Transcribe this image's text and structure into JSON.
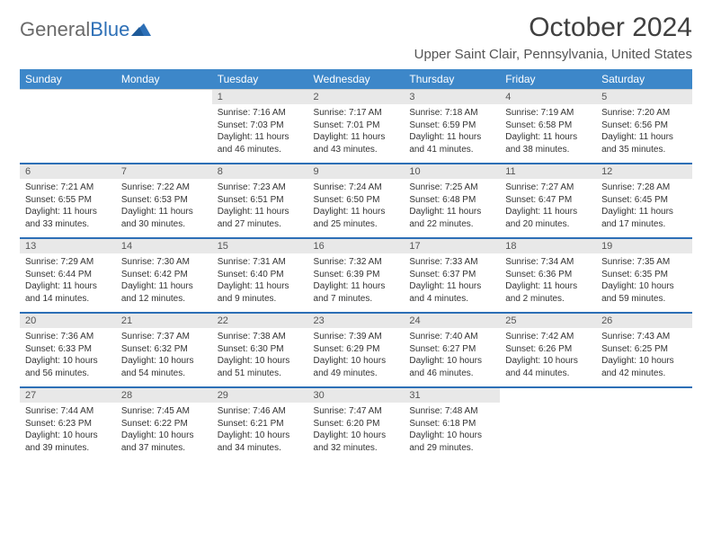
{
  "logo": {
    "text1": "General",
    "text2": "Blue"
  },
  "title": "October 2024",
  "location": "Upper Saint Clair, Pennsylvania, United States",
  "colors": {
    "header_bg": "#3d87c9",
    "header_text": "#ffffff",
    "daynum_bg": "#e8e8e8",
    "separator": "#2d6fb6",
    "logo_gray": "#6a6a6a",
    "logo_blue": "#2d6fb6"
  },
  "day_names": [
    "Sunday",
    "Monday",
    "Tuesday",
    "Wednesday",
    "Thursday",
    "Friday",
    "Saturday"
  ],
  "weeks": [
    {
      "nums": [
        "",
        "",
        "1",
        "2",
        "3",
        "4",
        "5"
      ],
      "cells": [
        null,
        null,
        {
          "sunrise": "Sunrise: 7:16 AM",
          "sunset": "Sunset: 7:03 PM",
          "daylight": "Daylight: 11 hours and 46 minutes."
        },
        {
          "sunrise": "Sunrise: 7:17 AM",
          "sunset": "Sunset: 7:01 PM",
          "daylight": "Daylight: 11 hours and 43 minutes."
        },
        {
          "sunrise": "Sunrise: 7:18 AM",
          "sunset": "Sunset: 6:59 PM",
          "daylight": "Daylight: 11 hours and 41 minutes."
        },
        {
          "sunrise": "Sunrise: 7:19 AM",
          "sunset": "Sunset: 6:58 PM",
          "daylight": "Daylight: 11 hours and 38 minutes."
        },
        {
          "sunrise": "Sunrise: 7:20 AM",
          "sunset": "Sunset: 6:56 PM",
          "daylight": "Daylight: 11 hours and 35 minutes."
        }
      ]
    },
    {
      "nums": [
        "6",
        "7",
        "8",
        "9",
        "10",
        "11",
        "12"
      ],
      "cells": [
        {
          "sunrise": "Sunrise: 7:21 AM",
          "sunset": "Sunset: 6:55 PM",
          "daylight": "Daylight: 11 hours and 33 minutes."
        },
        {
          "sunrise": "Sunrise: 7:22 AM",
          "sunset": "Sunset: 6:53 PM",
          "daylight": "Daylight: 11 hours and 30 minutes."
        },
        {
          "sunrise": "Sunrise: 7:23 AM",
          "sunset": "Sunset: 6:51 PM",
          "daylight": "Daylight: 11 hours and 27 minutes."
        },
        {
          "sunrise": "Sunrise: 7:24 AM",
          "sunset": "Sunset: 6:50 PM",
          "daylight": "Daylight: 11 hours and 25 minutes."
        },
        {
          "sunrise": "Sunrise: 7:25 AM",
          "sunset": "Sunset: 6:48 PM",
          "daylight": "Daylight: 11 hours and 22 minutes."
        },
        {
          "sunrise": "Sunrise: 7:27 AM",
          "sunset": "Sunset: 6:47 PM",
          "daylight": "Daylight: 11 hours and 20 minutes."
        },
        {
          "sunrise": "Sunrise: 7:28 AM",
          "sunset": "Sunset: 6:45 PM",
          "daylight": "Daylight: 11 hours and 17 minutes."
        }
      ]
    },
    {
      "nums": [
        "13",
        "14",
        "15",
        "16",
        "17",
        "18",
        "19"
      ],
      "cells": [
        {
          "sunrise": "Sunrise: 7:29 AM",
          "sunset": "Sunset: 6:44 PM",
          "daylight": "Daylight: 11 hours and 14 minutes."
        },
        {
          "sunrise": "Sunrise: 7:30 AM",
          "sunset": "Sunset: 6:42 PM",
          "daylight": "Daylight: 11 hours and 12 minutes."
        },
        {
          "sunrise": "Sunrise: 7:31 AM",
          "sunset": "Sunset: 6:40 PM",
          "daylight": "Daylight: 11 hours and 9 minutes."
        },
        {
          "sunrise": "Sunrise: 7:32 AM",
          "sunset": "Sunset: 6:39 PM",
          "daylight": "Daylight: 11 hours and 7 minutes."
        },
        {
          "sunrise": "Sunrise: 7:33 AM",
          "sunset": "Sunset: 6:37 PM",
          "daylight": "Daylight: 11 hours and 4 minutes."
        },
        {
          "sunrise": "Sunrise: 7:34 AM",
          "sunset": "Sunset: 6:36 PM",
          "daylight": "Daylight: 11 hours and 2 minutes."
        },
        {
          "sunrise": "Sunrise: 7:35 AM",
          "sunset": "Sunset: 6:35 PM",
          "daylight": "Daylight: 10 hours and 59 minutes."
        }
      ]
    },
    {
      "nums": [
        "20",
        "21",
        "22",
        "23",
        "24",
        "25",
        "26"
      ],
      "cells": [
        {
          "sunrise": "Sunrise: 7:36 AM",
          "sunset": "Sunset: 6:33 PM",
          "daylight": "Daylight: 10 hours and 56 minutes."
        },
        {
          "sunrise": "Sunrise: 7:37 AM",
          "sunset": "Sunset: 6:32 PM",
          "daylight": "Daylight: 10 hours and 54 minutes."
        },
        {
          "sunrise": "Sunrise: 7:38 AM",
          "sunset": "Sunset: 6:30 PM",
          "daylight": "Daylight: 10 hours and 51 minutes."
        },
        {
          "sunrise": "Sunrise: 7:39 AM",
          "sunset": "Sunset: 6:29 PM",
          "daylight": "Daylight: 10 hours and 49 minutes."
        },
        {
          "sunrise": "Sunrise: 7:40 AM",
          "sunset": "Sunset: 6:27 PM",
          "daylight": "Daylight: 10 hours and 46 minutes."
        },
        {
          "sunrise": "Sunrise: 7:42 AM",
          "sunset": "Sunset: 6:26 PM",
          "daylight": "Daylight: 10 hours and 44 minutes."
        },
        {
          "sunrise": "Sunrise: 7:43 AM",
          "sunset": "Sunset: 6:25 PM",
          "daylight": "Daylight: 10 hours and 42 minutes."
        }
      ]
    },
    {
      "nums": [
        "27",
        "28",
        "29",
        "30",
        "31",
        "",
        ""
      ],
      "cells": [
        {
          "sunrise": "Sunrise: 7:44 AM",
          "sunset": "Sunset: 6:23 PM",
          "daylight": "Daylight: 10 hours and 39 minutes."
        },
        {
          "sunrise": "Sunrise: 7:45 AM",
          "sunset": "Sunset: 6:22 PM",
          "daylight": "Daylight: 10 hours and 37 minutes."
        },
        {
          "sunrise": "Sunrise: 7:46 AM",
          "sunset": "Sunset: 6:21 PM",
          "daylight": "Daylight: 10 hours and 34 minutes."
        },
        {
          "sunrise": "Sunrise: 7:47 AM",
          "sunset": "Sunset: 6:20 PM",
          "daylight": "Daylight: 10 hours and 32 minutes."
        },
        {
          "sunrise": "Sunrise: 7:48 AM",
          "sunset": "Sunset: 6:18 PM",
          "daylight": "Daylight: 10 hours and 29 minutes."
        },
        null,
        null
      ]
    }
  ]
}
